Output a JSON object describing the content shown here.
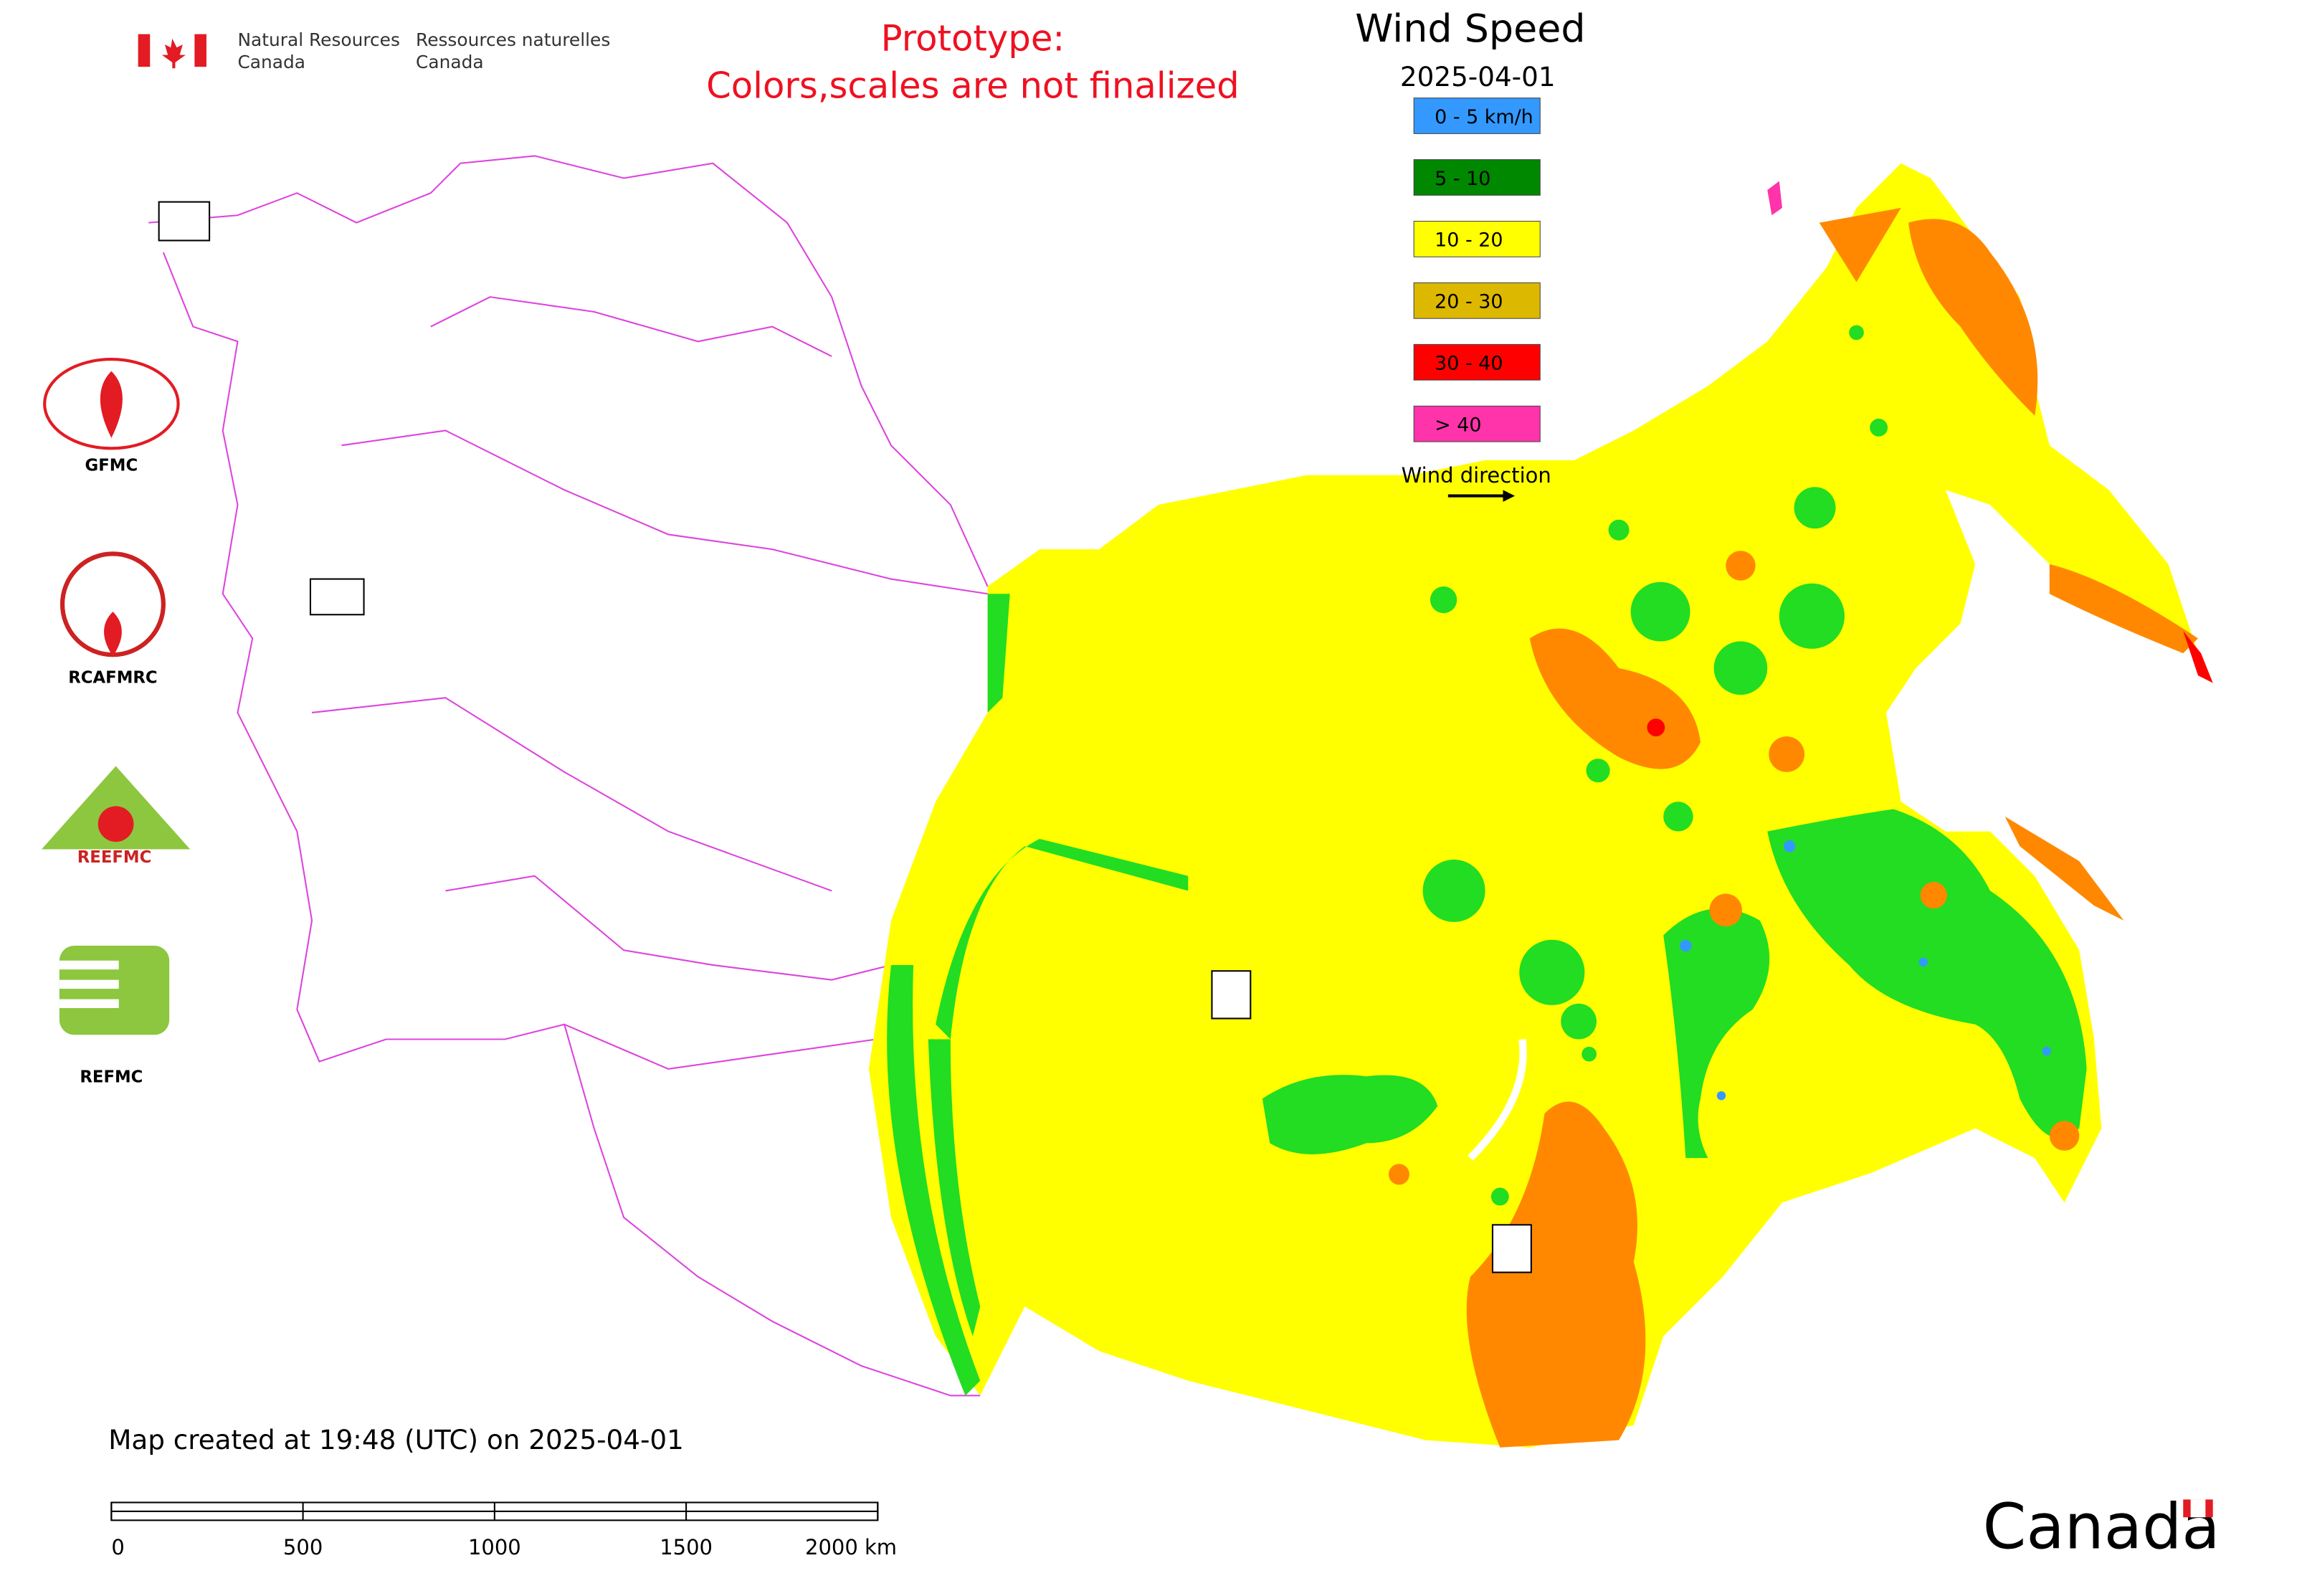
{
  "header": {
    "agency_en": [
      "Natural Resources",
      "Canada"
    ],
    "agency_fr": [
      "Ressources naturelles",
      "Canada"
    ],
    "notice": [
      "Prototype:",
      "Colors,scales are not finalized"
    ]
  },
  "legend": {
    "title": "Wind Speed",
    "date": "2025-04-01",
    "items": [
      {
        "label": "0 - 5 km/h",
        "color": "#3399ff"
      },
      {
        "label": "5 - 10",
        "color": "#008800"
      },
      {
        "label": "10 - 20",
        "color": "#ffff00"
      },
      {
        "label": "20 - 30",
        "color": "#ddb800"
      },
      {
        "label": "30 - 40",
        "color": "#ff0000"
      },
      {
        "label": "> 40",
        "color": "#ff33aa"
      }
    ],
    "wind_direction": "Wind direction"
  },
  "logos": [
    "GFMC",
    "RCAFMRC",
    "REEFMC",
    "REFMC"
  ],
  "footer": {
    "created": "Map created at 19:48 (UTC) on 2025-04-01",
    "scale_labels": [
      "0",
      "500",
      "1000",
      "1500",
      "2000 km"
    ],
    "wordmark": "Canada"
  }
}
